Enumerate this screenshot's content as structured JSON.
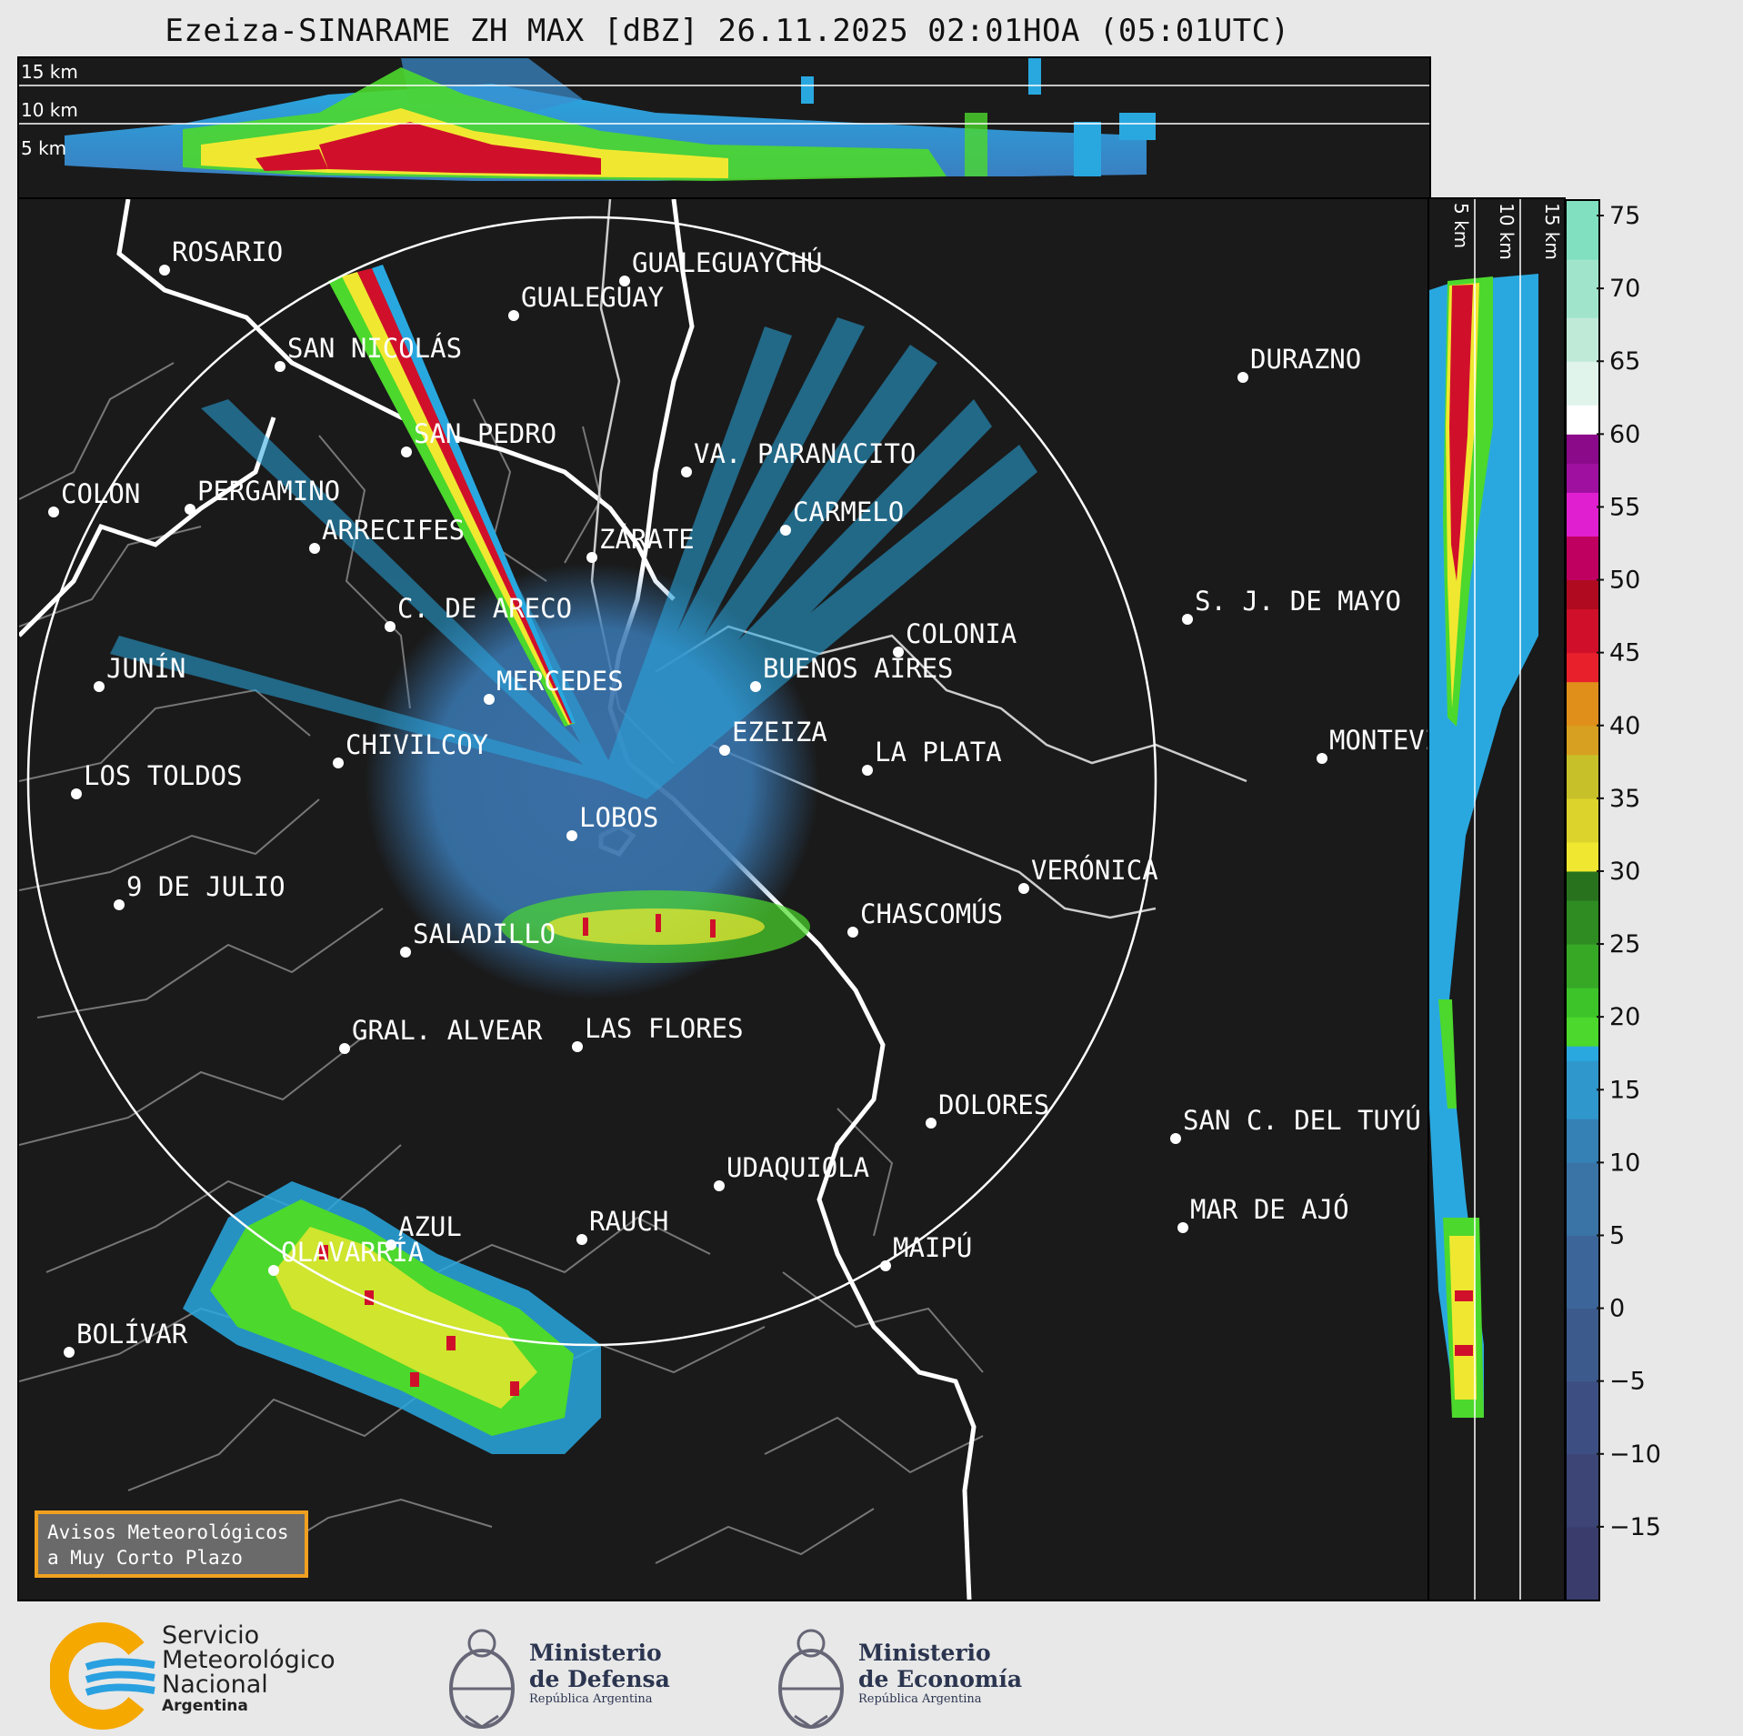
{
  "title": "Ezeiza-SINARAME ZH MAX [dBZ] 26.11.2025 02:01HOA (05:01UTC)",
  "top_panel": {
    "height_labels": [
      "15 km",
      "10 km",
      "5 km"
    ]
  },
  "side_panel": {
    "height_labels": [
      "5 km",
      "10 km",
      "15 km"
    ]
  },
  "colorbar": {
    "unit": "dBZ",
    "tick_labels": [
      "75",
      "70",
      "65",
      "60",
      "55",
      "50",
      "45",
      "40",
      "35",
      "30",
      "25",
      "20",
      "15",
      "10",
      "5",
      "0",
      "−5",
      "−10",
      "−15"
    ],
    "range": [
      -20,
      76
    ],
    "colors": {
      "low": "#3a3d6b",
      "blue_mid": "#3a6ea5",
      "blue_high": "#29a8e0",
      "green": "#4cd82c",
      "yellow": "#f0e830",
      "orange": "#e0901a",
      "red": "#d0102a",
      "magenta": "#e020d0",
      "white": "#ffffff",
      "aqua": "#80e0c0"
    }
  },
  "map": {
    "radar_site": "EZEIZA",
    "range_ring": true,
    "cities": [
      {
        "name": "ROSARIO"
      },
      {
        "name": "GUALEGUAYCHÚ"
      },
      {
        "name": "GUALEGUAY"
      },
      {
        "name": "SAN NICOLÁS"
      },
      {
        "name": "DURAZNO"
      },
      {
        "name": "SAN PEDRO"
      },
      {
        "name": "VA. PARANACITO"
      },
      {
        "name": "COLON"
      },
      {
        "name": "PERGAMINO"
      },
      {
        "name": "CARMELO"
      },
      {
        "name": "ARRECIFES"
      },
      {
        "name": "ZÁRATE"
      },
      {
        "name": "S. J. DE MAYO"
      },
      {
        "name": "C. DE ARECO"
      },
      {
        "name": "COLONIA"
      },
      {
        "name": "JUNÍN"
      },
      {
        "name": "BUENOS AIRES"
      },
      {
        "name": "MERCEDES"
      },
      {
        "name": "MONTEVIDEO"
      },
      {
        "name": "EZEIZA"
      },
      {
        "name": "CHIVILCOY"
      },
      {
        "name": "LA PLATA"
      },
      {
        "name": "LOS TOLDOS"
      },
      {
        "name": "LOBOS"
      },
      {
        "name": "VERÓNICA"
      },
      {
        "name": "9 DE JULIO"
      },
      {
        "name": "CHASCOMÚS"
      },
      {
        "name": "SALADILLO"
      },
      {
        "name": "GRAL. ALVEAR"
      },
      {
        "name": "LAS FLORES"
      },
      {
        "name": "BOLÍVAR"
      },
      {
        "name": "DOLORES"
      },
      {
        "name": "SAN C. DEL TUYÚ"
      },
      {
        "name": "UDAQUIOLA"
      },
      {
        "name": "MAR DE AJÓ"
      },
      {
        "name": "AZUL"
      },
      {
        "name": "RAUCH"
      },
      {
        "name": "OLAVARRÍA"
      },
      {
        "name": "MAIPÚ"
      }
    ]
  },
  "aviso": {
    "line1": "Avisos Meteorológicos",
    "line2": "a Muy Corto Plazo"
  },
  "logos": {
    "smn_line1": "Servicio",
    "smn_line2": "Meteorológico",
    "smn_line3": "Nacional",
    "smn_line4": "Argentina",
    "defensa_line1": "Ministerio",
    "defensa_line2": "de Defensa",
    "defensa_line3": "República Argentina",
    "economia_line1": "Ministerio",
    "economia_line2": "de Economía",
    "economia_line3": "República Argentina"
  }
}
